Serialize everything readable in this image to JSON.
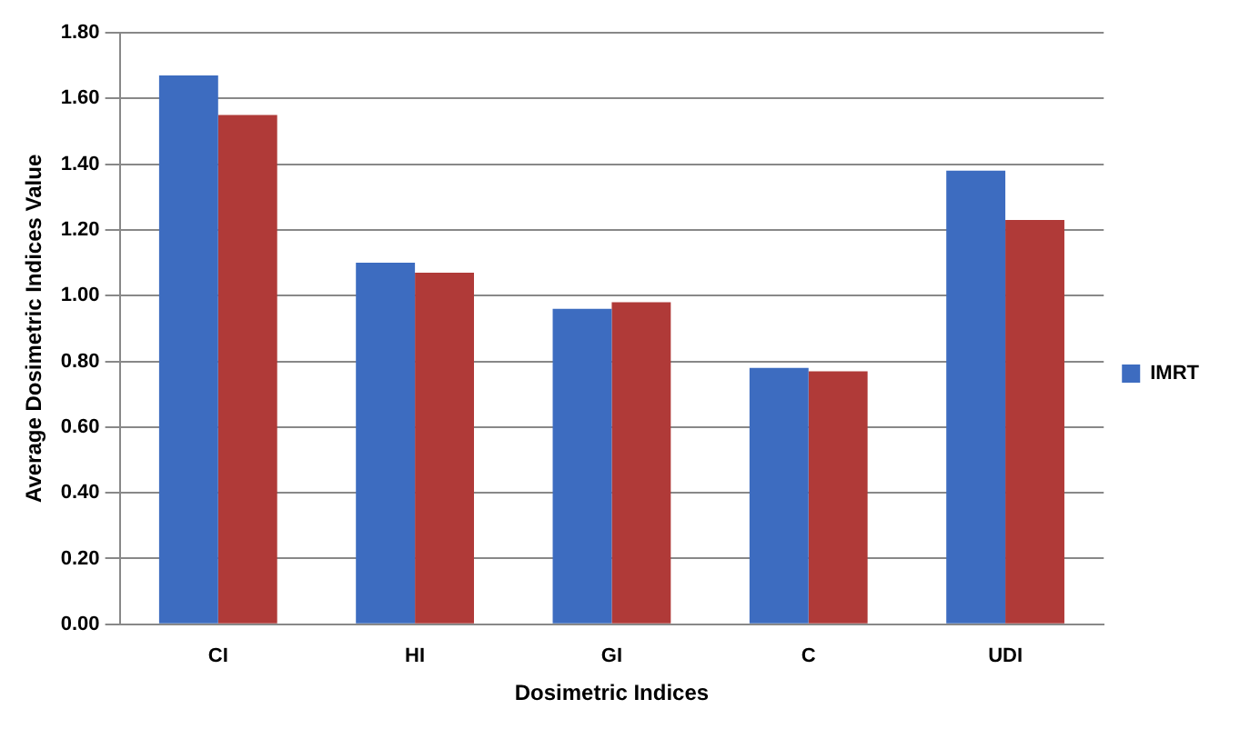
{
  "chart_data": {
    "type": "bar",
    "xlabel": "Dosimetric Indices",
    "ylabel": "Average Dosimetric Indices Value",
    "categories": [
      "CI",
      "HI",
      "GI",
      "C",
      "UDI"
    ],
    "series": [
      {
        "name": "IMRT",
        "color": "#3d6cc0",
        "values": [
          1.67,
          1.1,
          0.96,
          0.78,
          1.38
        ]
      },
      {
        "color": "#b03a38",
        "values": [
          1.55,
          1.07,
          0.98,
          0.77,
          1.23
        ]
      }
    ],
    "ylim": [
      0,
      1.8
    ],
    "yticks": [
      {
        "value": 0,
        "label": "0.00"
      },
      {
        "value": 0.2,
        "label": "0.20"
      },
      {
        "value": 0.4,
        "label": "0.40"
      },
      {
        "value": 0.6,
        "label": "0.60"
      },
      {
        "value": 0.8,
        "label": "0.80"
      },
      {
        "value": 1,
        "label": "1.00"
      },
      {
        "value": 1.2,
        "label": "1.20"
      },
      {
        "value": 1.4,
        "label": "1.40"
      },
      {
        "value": 1.6,
        "label": "1.60"
      },
      {
        "value": 1.8,
        "label": "1.80"
      }
    ],
    "grid": "y",
    "legend": "right"
  }
}
